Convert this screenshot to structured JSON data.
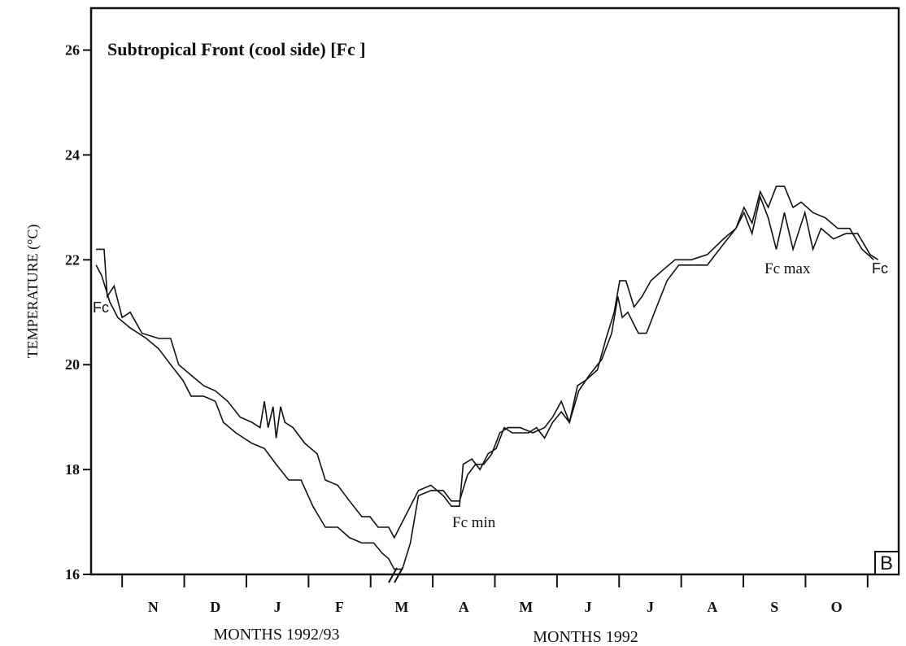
{
  "chart_data": {
    "type": "line",
    "title": "Subtropical Front (cool side)    [Fc  ]",
    "y_label": "TEMPERATURE (°C)",
    "x_labels": [
      "MONTHS 1992/93",
      "MONTHS 1992"
    ],
    "panel_label": "B",
    "annotations": [
      "Fc",
      "Fc min",
      "Fc max",
      "Fc"
    ],
    "categories": [
      "N",
      "D",
      "J",
      "F",
      "M",
      "A",
      "M",
      "J",
      "J",
      "A",
      "S",
      "O"
    ],
    "xlim": [
      0,
      13
    ],
    "ylim": [
      16,
      26.8
    ],
    "yticks": [
      16,
      18,
      20,
      22,
      24,
      26
    ],
    "series": [
      {
        "color": "#111111",
        "x": [
          0.08,
          0.21,
          0.26,
          0.37,
          0.5,
          0.63,
          0.82,
          1.09,
          1.28,
          1.41,
          1.61,
          1.81,
          2.0,
          2.2,
          2.4,
          2.59,
          2.72,
          2.79,
          2.85,
          2.93,
          2.98,
          3.05,
          3.12,
          3.25,
          3.44,
          3.64,
          3.77,
          3.97,
          4.16,
          4.36,
          4.49,
          4.62,
          4.79,
          4.88,
          5.01,
          5.27,
          5.47,
          5.67,
          5.8,
          5.93,
          5.99,
          6.13,
          6.26,
          6.39,
          6.52,
          6.65,
          6.78,
          6.91,
          7.04,
          7.17,
          7.3,
          7.43,
          7.57,
          7.7,
          7.83,
          7.96,
          8.15,
          8.29,
          8.42,
          8.51,
          8.61,
          8.74,
          8.87,
          9.01,
          9.2,
          9.4,
          9.66,
          9.92,
          10.18,
          10.38,
          10.51,
          10.64,
          10.77,
          10.9,
          11.03,
          11.16,
          11.3,
          11.43,
          11.62,
          11.82,
          12.02,
          12.21,
          12.41,
          12.6
        ],
        "values": [
          22.2,
          22.2,
          21.3,
          21.5,
          20.9,
          21.0,
          20.6,
          20.5,
          20.5,
          20.0,
          19.8,
          19.6,
          19.5,
          19.3,
          19.0,
          18.9,
          18.8,
          19.3,
          18.8,
          19.2,
          18.6,
          19.2,
          18.9,
          18.8,
          18.5,
          18.3,
          17.8,
          17.7,
          17.4,
          17.1,
          17.1,
          16.9,
          16.9,
          16.7,
          17.0,
          17.6,
          17.7,
          17.5,
          17.3,
          17.3,
          18.1,
          18.2,
          18.0,
          18.3,
          18.4,
          18.8,
          18.7,
          18.7,
          18.7,
          18.8,
          18.6,
          18.9,
          19.1,
          18.9,
          19.6,
          19.7,
          19.9,
          20.5,
          21.0,
          21.6,
          21.6,
          21.1,
          21.3,
          21.6,
          21.8,
          22.0,
          22.0,
          22.1,
          22.4,
          22.6,
          23.0,
          22.7,
          23.3,
          23.0,
          23.4,
          23.4,
          23.0,
          23.1,
          22.9,
          22.8,
          22.6,
          22.6,
          22.2,
          22.0
        ]
      },
      {
        "color": "#111111",
        "x": [
          0.08,
          0.17,
          0.3,
          0.43,
          0.63,
          0.89,
          1.09,
          1.28,
          1.48,
          1.61,
          1.81,
          2.0,
          2.13,
          2.33,
          2.59,
          2.79,
          2.98,
          3.18,
          3.38,
          3.57,
          3.77,
          3.97,
          4.16,
          4.36,
          4.55,
          4.69,
          4.79,
          4.88,
          5.01,
          5.14,
          5.27,
          5.47,
          5.67,
          5.8,
          5.93,
          6.06,
          6.19,
          6.32,
          6.45,
          6.58,
          6.71,
          6.91,
          7.11,
          7.3,
          7.43,
          7.57,
          7.7,
          7.85,
          8.02,
          8.22,
          8.38,
          8.48,
          8.55,
          8.64,
          8.81,
          8.94,
          9.07,
          9.27,
          9.46,
          9.66,
          9.92,
          10.18,
          10.38,
          10.51,
          10.64,
          10.77,
          10.9,
          11.03,
          11.16,
          11.3,
          11.49,
          11.62,
          11.75,
          11.95,
          12.15,
          12.34,
          12.54,
          12.67
        ],
        "values": [
          21.9,
          21.7,
          21.2,
          20.9,
          20.7,
          20.5,
          20.3,
          20.0,
          19.7,
          19.4,
          19.4,
          19.3,
          18.9,
          18.7,
          18.5,
          18.4,
          18.1,
          17.8,
          17.8,
          17.3,
          16.9,
          16.9,
          16.7,
          16.6,
          16.6,
          16.4,
          16.3,
          16.1,
          16.1,
          16.6,
          17.5,
          17.6,
          17.6,
          17.4,
          17.4,
          17.9,
          18.1,
          18.1,
          18.3,
          18.7,
          18.8,
          18.8,
          18.7,
          18.8,
          19.0,
          19.3,
          18.9,
          19.5,
          19.8,
          20.1,
          20.6,
          21.3,
          20.9,
          21.0,
          20.6,
          20.6,
          21.0,
          21.6,
          21.9,
          21.9,
          21.9,
          22.3,
          22.6,
          22.9,
          22.5,
          23.2,
          22.8,
          22.2,
          22.9,
          22.2,
          22.9,
          22.2,
          22.6,
          22.4,
          22.5,
          22.5,
          22.1,
          22.0
        ]
      }
    ]
  }
}
